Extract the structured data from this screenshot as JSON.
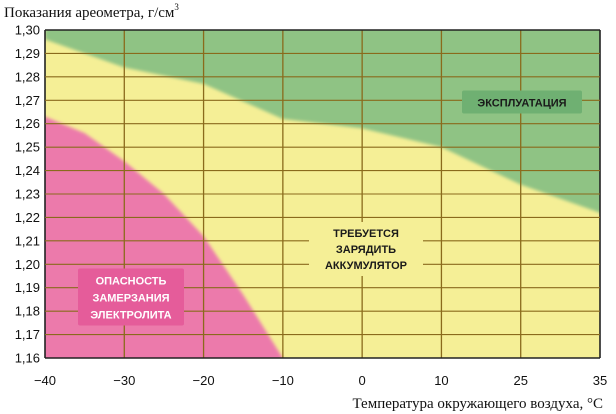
{
  "chart_data": {
    "type": "area",
    "ylabel": "Показания ареометра, г/см",
    "ylabel_sup": "3",
    "xlabel": "Температура окружающего воздуха, °C",
    "x_ticks": [
      -40,
      -30,
      -20,
      -10,
      0,
      10,
      25,
      35
    ],
    "x_tick_labels": [
      "−40",
      "−30",
      "−20",
      "−10",
      "0",
      "10",
      "25",
      "35"
    ],
    "y_ticks": [
      1.3,
      1.29,
      1.28,
      1.27,
      1.26,
      1.25,
      1.24,
      1.23,
      1.22,
      1.21,
      1.2,
      1.19,
      1.18,
      1.17,
      1.16
    ],
    "y_tick_labels": [
      "1,30",
      "1,29",
      "1,28",
      "1,27",
      "1,26",
      "1,25",
      "1,24",
      "1,23",
      "1,22",
      "1,21",
      "1,20",
      "1,19",
      "1,18",
      "1,17",
      "1,16"
    ],
    "ylim": [
      1.16,
      1.3
    ],
    "grid": true,
    "regions": [
      {
        "label_lines": [
          "ЭКСПЛУАТАЦИЯ"
        ],
        "color": "#8fc384",
        "label_bg": "#6fb072",
        "label_color": "#1a1a1a",
        "boundary": [
          [
            -40,
            1.296
          ],
          [
            -30,
            1.284
          ],
          [
            -20,
            1.277
          ],
          [
            -10,
            1.262
          ],
          [
            0,
            1.258
          ],
          [
            10,
            1.25
          ],
          [
            25,
            1.234
          ],
          [
            35,
            1.222
          ]
        ]
      },
      {
        "label_lines": [
          "ТРЕБУЕТСЯ",
          "ЗАРЯДИТЬ",
          "АККУМУЛЯТОР"
        ],
        "color": "#f5ef96",
        "label_bg": "#f5ef96",
        "label_color": "#1a1a1a"
      },
      {
        "label_lines": [
          "ОПАСНОСТЬ",
          "ЗАМЕРЗАНИЯ",
          "ЭЛЕКТРОЛИТА"
        ],
        "color": "#ec7aab",
        "label_bg": "#e55c9a",
        "label_color": "#ffffff",
        "boundary": [
          [
            -40,
            1.263
          ],
          [
            -35,
            1.256
          ],
          [
            -30,
            1.244
          ],
          [
            -25,
            1.23
          ],
          [
            -20,
            1.212
          ],
          [
            -15,
            1.187
          ],
          [
            -10,
            1.16
          ]
        ]
      }
    ]
  }
}
